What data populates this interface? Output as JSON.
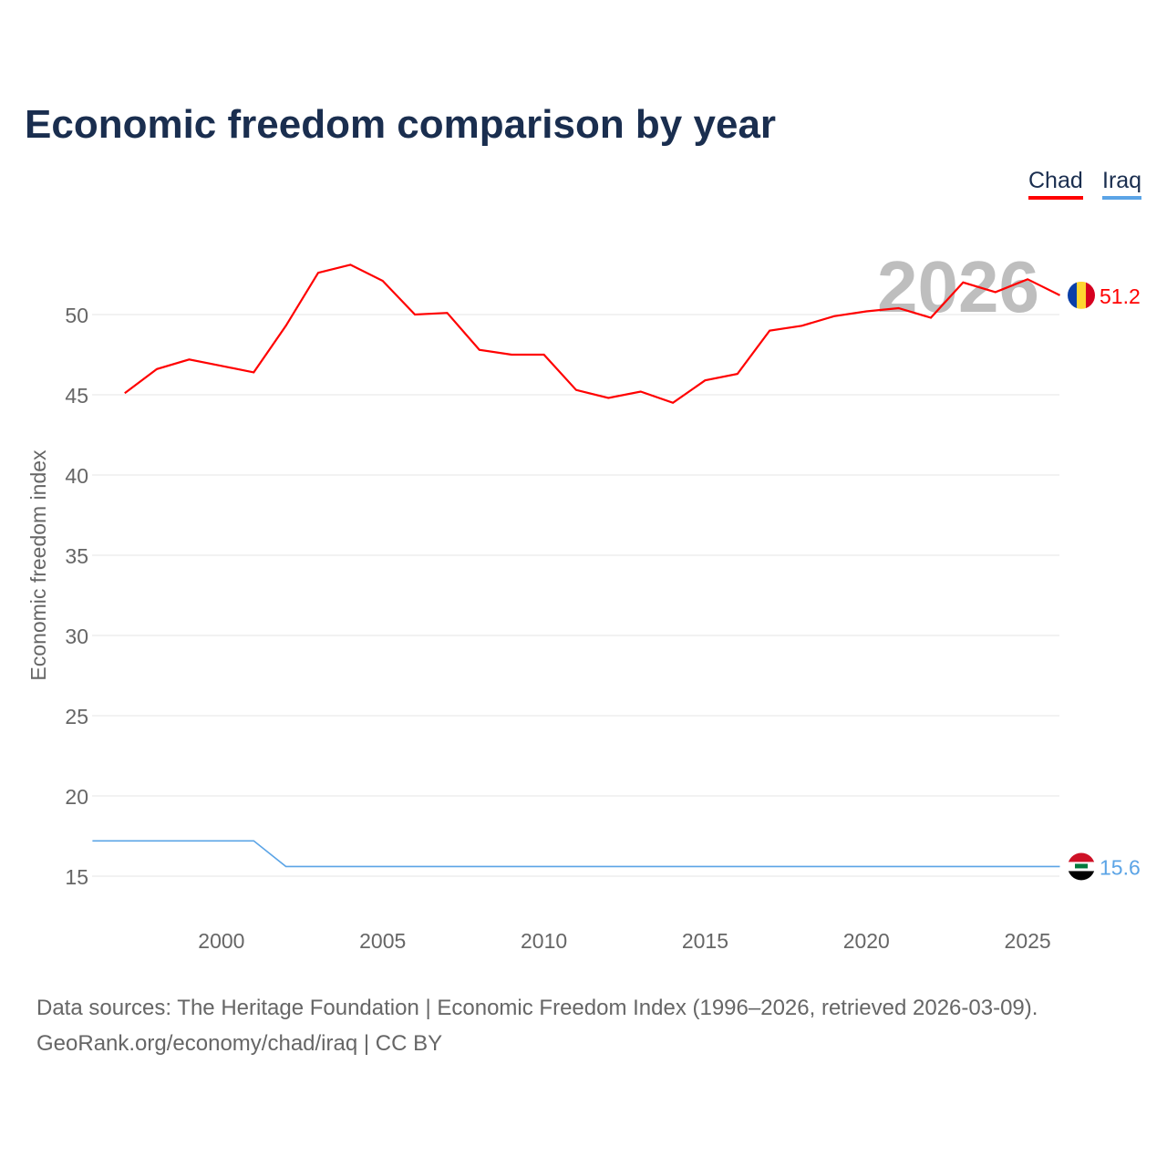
{
  "chart_data": {
    "type": "line",
    "title": "Economic freedom comparison by year",
    "xlabel": "",
    "ylabel": "Economic freedom index",
    "xlim": [
      1996,
      2026
    ],
    "ylim": [
      12.5,
      55
    ],
    "x_ticks": [
      "2000",
      "2005",
      "2010",
      "2015",
      "2020",
      "2025"
    ],
    "y_ticks": [
      "15",
      "20",
      "25",
      "30",
      "35",
      "40",
      "45",
      "50"
    ],
    "grid": true,
    "legend_position": "top-right",
    "year_watermark": "2026",
    "series": [
      {
        "name": "Chad",
        "color": "#ff0000",
        "end_label": "51.2",
        "x": [
          1997,
          1998,
          1999,
          2000,
          2001,
          2002,
          2003,
          2004,
          2005,
          2006,
          2007,
          2008,
          2009,
          2010,
          2011,
          2012,
          2013,
          2014,
          2015,
          2016,
          2017,
          2018,
          2019,
          2020,
          2021,
          2022,
          2023,
          2024,
          2025,
          2026
        ],
        "values": [
          45.1,
          46.6,
          47.2,
          46.8,
          46.4,
          49.3,
          52.6,
          53.1,
          52.1,
          50.0,
          50.1,
          47.8,
          47.5,
          47.5,
          45.3,
          44.8,
          45.2,
          44.5,
          45.9,
          46.3,
          49.0,
          49.3,
          49.9,
          50.2,
          50.4,
          49.8,
          52.0,
          51.4,
          52.2,
          51.2
        ]
      },
      {
        "name": "Iraq",
        "color": "#5ba4e6",
        "end_label": "15.6",
        "x": [
          1996,
          1997,
          1998,
          1999,
          2000,
          2001,
          2002,
          2003,
          2004,
          2005,
          2006,
          2007,
          2008,
          2009,
          2010,
          2011,
          2012,
          2013,
          2014,
          2015,
          2016,
          2017,
          2018,
          2019,
          2020,
          2021,
          2022,
          2023,
          2024,
          2025,
          2026
        ],
        "values": [
          17.2,
          17.2,
          17.2,
          17.2,
          17.2,
          17.2,
          15.6,
          15.6,
          15.6,
          15.6,
          15.6,
          15.6,
          15.6,
          15.6,
          15.6,
          15.6,
          15.6,
          15.6,
          15.6,
          15.6,
          15.6,
          15.6,
          15.6,
          15.6,
          15.6,
          15.6,
          15.6,
          15.6,
          15.6,
          15.6,
          15.6
        ]
      }
    ]
  },
  "source": {
    "line1": "Data sources: The Heritage Foundation | Economic Freedom Index (1996–2026, retrieved 2026-03-09).",
    "line2": "GeoRank.org/economy/chad/iraq | CC BY"
  }
}
